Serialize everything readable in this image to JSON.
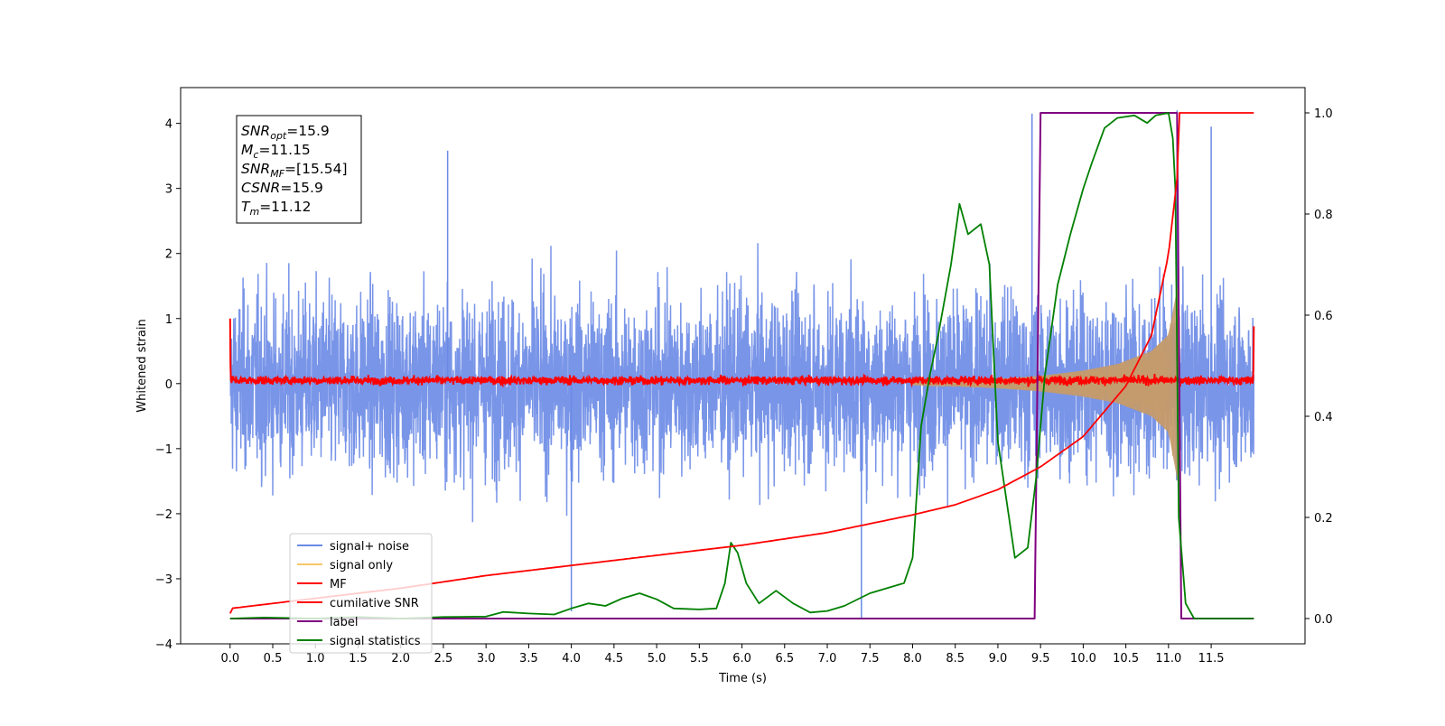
{
  "chart_data": {
    "type": "line",
    "title": "",
    "xlabel": "Time (s)",
    "ylabel": "Whitened strain",
    "y2label": "",
    "xlim": [
      -0.58,
      12.6
    ],
    "ylim": [
      -4.0,
      4.55
    ],
    "y2lim": [
      -0.05,
      1.05
    ],
    "x_ticks": [
      0.0,
      0.5,
      1.0,
      1.5,
      2.0,
      2.5,
      3.0,
      3.5,
      4.0,
      4.5,
      5.0,
      5.5,
      6.0,
      6.5,
      7.0,
      7.5,
      8.0,
      8.5,
      9.0,
      9.5,
      10.0,
      10.5,
      11.0,
      11.5
    ],
    "x_tick_labels": [
      "0.0",
      "0.5",
      "1.0",
      "1.5",
      "2.0",
      "2.5",
      "3.0",
      "3.5",
      "4.0",
      "4.5",
      "5.0",
      "5.5",
      "6.0",
      "6.5",
      "7.0",
      "7.5",
      "8.0",
      "8.5",
      "9.0",
      "9.5",
      "10.0",
      "10.5",
      "11.0",
      "11.5"
    ],
    "y_ticks": [
      -4,
      -3,
      -2,
      -1,
      0,
      1,
      2,
      3,
      4
    ],
    "y_tick_labels": [
      "−4",
      "−3",
      "−2",
      "−1",
      "0",
      "1",
      "2",
      "3",
      "4"
    ],
    "y2_ticks": [
      0.0,
      0.2,
      0.4,
      0.6,
      0.8,
      1.0
    ],
    "y2_tick_labels": [
      "0.0",
      "0.2",
      "0.4",
      "0.6",
      "0.8",
      "1.0"
    ],
    "grid": false,
    "legend_position": "lower-left",
    "legend": [
      {
        "label": "signal+ noise",
        "color": "#6a8ae6"
      },
      {
        "label": "signal only",
        "color": "#f5c766"
      },
      {
        "label": "MF",
        "color": "#ff0000"
      },
      {
        "label": "cumilative SNR",
        "color": "#ff0000"
      },
      {
        "label": "label",
        "color": "#800080"
      },
      {
        "label": "signal statistics",
        "color": "#008000"
      }
    ],
    "annotation": {
      "lines": [
        {
          "sym": "SNR",
          "sub": "opt",
          "val": "=15.9"
        },
        {
          "sym": "M",
          "sub": "c",
          "val": "=11.15"
        },
        {
          "sym": "SNR",
          "sub": "MF",
          "val": "=[15.54]"
        },
        {
          "sym": "CSNR",
          "sub": "",
          "val": "=15.9"
        },
        {
          "sym": "T",
          "sub": "m",
          "val": "=11.12"
        }
      ]
    },
    "series": [
      {
        "name": "signal+ noise",
        "axis": "left",
        "color": "#6a8ae6",
        "style": "noise band",
        "x_range": [
          0.0,
          12.0
        ],
        "approx_envelope_y": [
          -2.6,
          2.6
        ],
        "notable_peaks": [
          [
            2.55,
            3.58
          ],
          [
            9.4,
            4.15
          ],
          [
            11.1,
            4.2
          ],
          [
            4.0,
            -3.5
          ],
          [
            7.4,
            -3.6
          ],
          [
            11.5,
            3.95
          ]
        ]
      },
      {
        "name": "signal only",
        "axis": "left",
        "color": "#f5c766",
        "x": [
          8.0,
          8.5,
          9.0,
          9.5,
          10.0,
          10.4,
          10.8,
          11.0,
          11.12,
          11.15
        ],
        "amplitude": [
          0.02,
          0.04,
          0.07,
          0.12,
          0.2,
          0.3,
          0.5,
          0.75,
          1.6,
          0.0
        ]
      },
      {
        "name": "MF",
        "axis": "left",
        "color": "#ff0000",
        "style": "noisy line",
        "x_range": [
          0.0,
          12.0
        ],
        "approx_level": 0.05,
        "start_value": 1.0,
        "end_value": 0.88
      },
      {
        "name": "cumilative SNR",
        "axis": "right",
        "color": "#ff0000",
        "x": [
          0.0,
          0.01,
          1.0,
          2.0,
          3.0,
          4.0,
          5.0,
          6.0,
          7.0,
          8.0,
          8.5,
          9.0,
          9.5,
          10.0,
          10.5,
          10.8,
          11.0,
          11.1,
          11.12,
          11.2,
          12.0
        ],
        "y": [
          0.01,
          0.02,
          0.04,
          0.06,
          0.085,
          0.105,
          0.125,
          0.145,
          0.17,
          0.205,
          0.225,
          0.255,
          0.3,
          0.36,
          0.46,
          0.56,
          0.72,
          0.87,
          1.0,
          1.0,
          1.0
        ]
      },
      {
        "name": "label",
        "axis": "right",
        "color": "#800080",
        "x": [
          0.0,
          9.43,
          9.5,
          11.1,
          11.15,
          12.0
        ],
        "y": [
          0.0,
          0.0,
          1.0,
          1.0,
          0.0,
          0.0
        ]
      },
      {
        "name": "signal statistics",
        "axis": "right",
        "color": "#008000",
        "x": [
          0.0,
          0.4,
          1.0,
          1.5,
          2.0,
          2.5,
          3.0,
          3.2,
          3.5,
          3.8,
          4.0,
          4.2,
          4.4,
          4.6,
          4.8,
          5.0,
          5.2,
          5.5,
          5.7,
          5.8,
          5.87,
          5.95,
          6.05,
          6.2,
          6.4,
          6.6,
          6.8,
          7.0,
          7.2,
          7.5,
          7.7,
          7.9,
          8.0,
          8.1,
          8.2,
          8.3,
          8.45,
          8.55,
          8.65,
          8.8,
          8.9,
          9.0,
          9.2,
          9.35,
          9.45,
          9.55,
          9.7,
          9.85,
          10.0,
          10.1,
          10.25,
          10.4,
          10.6,
          10.75,
          10.85,
          11.0,
          11.05,
          11.08,
          11.12,
          11.2,
          11.3,
          12.0
        ],
        "y": [
          0.0,
          0.002,
          0.0,
          0.003,
          0.0,
          0.003,
          0.004,
          0.013,
          0.01,
          0.008,
          0.02,
          0.03,
          0.025,
          0.04,
          0.05,
          0.038,
          0.02,
          0.018,
          0.02,
          0.07,
          0.15,
          0.13,
          0.07,
          0.03,
          0.055,
          0.03,
          0.012,
          0.015,
          0.025,
          0.05,
          0.06,
          0.07,
          0.12,
          0.38,
          0.48,
          0.56,
          0.7,
          0.82,
          0.76,
          0.78,
          0.7,
          0.35,
          0.12,
          0.14,
          0.28,
          0.48,
          0.66,
          0.76,
          0.85,
          0.9,
          0.97,
          0.99,
          0.995,
          0.98,
          0.995,
          1.0,
          0.95,
          0.85,
          0.2,
          0.03,
          0.0,
          0.0
        ]
      }
    ]
  }
}
